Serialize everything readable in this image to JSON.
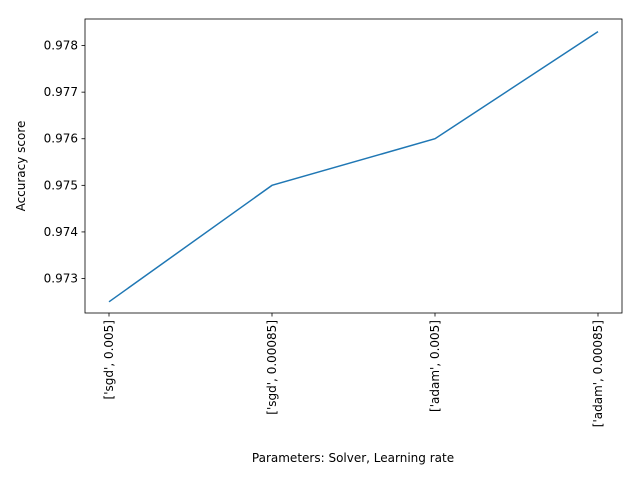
{
  "chart_data": {
    "type": "line",
    "categories": [
      "['sgd', 0.005]",
      "['sgd', 0.00085]",
      "['adam', 0.005]",
      "['adam', 0.00085]"
    ],
    "values": [
      0.9725,
      0.975,
      0.976,
      0.9783
    ],
    "xlabel": "Parameters: Solver, Learning rate",
    "ylabel": "Accuracy score",
    "ylim": [
      0.97226,
      0.97857
    ],
    "yticks": [
      0.973,
      0.974,
      0.975,
      0.976,
      0.977,
      0.978
    ],
    "ytick_labels": [
      "0.973",
      "0.974",
      "0.975",
      "0.976",
      "0.977",
      "0.978"
    ],
    "grid": false,
    "line_color": "#1f77b4"
  }
}
